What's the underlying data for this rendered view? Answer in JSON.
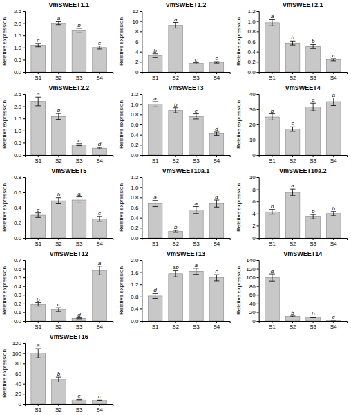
{
  "chart_data": [
    {
      "type": "bar",
      "title": "VmSWEET1.1",
      "ylabel": "Relative expression",
      "categories": [
        "S1",
        "S2",
        "S3",
        "S4"
      ],
      "values": [
        1.1,
        2.0,
        1.7,
        1.0
      ],
      "errors": [
        0.07,
        0.06,
        0.09,
        0.06
      ],
      "letters": [
        "c",
        "a",
        "b",
        "c"
      ],
      "ylim": [
        0,
        2.5
      ],
      "yticks": [
        {
          "value": 0,
          "label": "0.0"
        },
        0.5,
        {
          "value": 1,
          "label": "1.0"
        },
        1.5,
        {
          "value": 2,
          "label": "2.0"
        },
        2.5
      ],
      "color": "#c8c8c8",
      "grid": false
    },
    {
      "type": "bar",
      "title": "VmSWEET1.2",
      "ylabel": "Relative expression",
      "categories": [
        "S1",
        "S2",
        "S3",
        "S4"
      ],
      "values": [
        3.2,
        9.2,
        1.7,
        1.9
      ],
      "errors": [
        0.38,
        0.55,
        0.13,
        0.14
      ],
      "letters": [
        "b",
        "a",
        "c",
        "c"
      ],
      "ylim": [
        0,
        12
      ],
      "yticks": [
        0,
        2,
        4,
        6,
        8,
        10,
        12
      ],
      "color": "#c8c8c8",
      "grid": false
    },
    {
      "type": "bar",
      "title": "VmSWEET2.1",
      "ylabel": "Relative expression",
      "categories": [
        "S1",
        "S2",
        "S3",
        "S4"
      ],
      "values": [
        0.97,
        0.57,
        0.5,
        0.24
      ],
      "errors": [
        0.06,
        0.04,
        0.04,
        0.02
      ],
      "letters": [
        "a",
        "b",
        "b",
        "c"
      ],
      "ylim": [
        0,
        1.2
      ],
      "yticks": [
        {
          "value": 0,
          "label": "0.0"
        },
        0.2,
        0.4,
        0.6,
        0.8,
        {
          "value": 1,
          "label": "1.0"
        },
        1.2
      ],
      "color": "#c8c8c8",
      "grid": false
    },
    {
      "type": "bar",
      "title": "VmSWEET2.2",
      "ylabel": "Relative expression",
      "categories": [
        "S1",
        "S2",
        "S3",
        "S4"
      ],
      "values": [
        2.2,
        1.58,
        0.42,
        0.28
      ],
      "errors": [
        0.18,
        0.12,
        0.04,
        0.03
      ],
      "letters": [
        "a",
        "b",
        "c",
        "d"
      ],
      "ylim": [
        0,
        2.5
      ],
      "yticks": [
        {
          "value": 0,
          "label": "0.0"
        },
        0.5,
        {
          "value": 1,
          "label": "1.0"
        },
        1.5,
        {
          "value": 2,
          "label": "2.0"
        },
        2.5
      ],
      "color": "#c8c8c8",
      "grid": false
    },
    {
      "type": "bar",
      "title": "VmSWEET3",
      "ylabel": "Relative expression",
      "categories": [
        "S1",
        "S2",
        "S3",
        "S4"
      ],
      "values": [
        1.0,
        0.88,
        0.76,
        0.42
      ],
      "errors": [
        0.05,
        0.05,
        0.05,
        0.03
      ],
      "letters": [
        "a",
        "b",
        "c",
        "d"
      ],
      "ylim": [
        0,
        1.2
      ],
      "yticks": [
        {
          "value": 0,
          "label": "0.0"
        },
        0.2,
        0.4,
        0.6,
        0.8,
        {
          "value": 1,
          "label": "1.0"
        },
        1.2
      ],
      "color": "#c8c8c8",
      "grid": false
    },
    {
      "type": "bar",
      "title": "VmSWEET4",
      "ylabel": "Relative expression",
      "categories": [
        "S1",
        "S2",
        "S3",
        "S4"
      ],
      "values": [
        25.0,
        17.0,
        31.5,
        35.0
      ],
      "errors": [
        2.0,
        1.5,
        2.5,
        2.5
      ],
      "letters": [
        "b",
        "c",
        "a",
        "a"
      ],
      "ylim": [
        0,
        40
      ],
      "yticks": [
        0,
        10,
        20,
        30,
        40
      ],
      "color": "#c8c8c8",
      "grid": false
    },
    {
      "type": "bar",
      "title": "VmSWEET5",
      "ylabel": "Relative expression",
      "categories": [
        "S1",
        "S2",
        "S3",
        "S4"
      ],
      "values": [
        0.3,
        0.49,
        0.5,
        0.25
      ],
      "errors": [
        0.03,
        0.04,
        0.04,
        0.03
      ],
      "letters": [
        "c",
        "b",
        "a",
        "c"
      ],
      "ylim": [
        0,
        0.8
      ],
      "yticks": [
        {
          "value": 0,
          "label": "0.0"
        },
        0.2,
        0.4,
        0.6,
        0.8
      ],
      "color": "#c8c8c8",
      "grid": false
    },
    {
      "type": "bar",
      "title": "VmSWEET10a.1",
      "ylabel": "Relative expression",
      "categories": [
        "S1",
        "S2",
        "S3",
        "S4"
      ],
      "values": [
        0.68,
        0.13,
        0.55,
        0.68
      ],
      "errors": [
        0.06,
        0.02,
        0.07,
        0.07
      ],
      "letters": [
        "a",
        "b",
        "a",
        "a"
      ],
      "ylim": [
        0,
        1.2
      ],
      "yticks": [
        {
          "value": 0,
          "label": "0.0"
        },
        0.2,
        0.4,
        0.6,
        0.8,
        {
          "value": 1,
          "label": "1.0"
        },
        1.2
      ],
      "color": "#c8c8c8",
      "grid": false
    },
    {
      "type": "bar",
      "title": "VmSWEET10a.2",
      "ylabel": "Relative expression",
      "categories": [
        "S1",
        "S2",
        "S3",
        "S4"
      ],
      "values": [
        4.3,
        7.5,
        3.5,
        4.0
      ],
      "errors": [
        0.4,
        0.55,
        0.35,
        0.35
      ],
      "letters": [
        "b",
        "a",
        "b",
        "b"
      ],
      "ylim": [
        0,
        10
      ],
      "yticks": [
        0,
        2,
        4,
        6,
        8,
        10
      ],
      "color": "#c8c8c8",
      "grid": false
    },
    {
      "type": "bar",
      "title": "VmSWEET12",
      "ylabel": "Relative expression",
      "categories": [
        "S1",
        "S2",
        "S3",
        "S4"
      ],
      "values": [
        0.19,
        0.13,
        0.03,
        0.58
      ],
      "errors": [
        0.02,
        0.02,
        0.005,
        0.05
      ],
      "letters": [
        "b",
        "c",
        "d",
        "a"
      ],
      "ylim": [
        0,
        0.7
      ],
      "yticks": [
        {
          "value": 0,
          "label": "0.0"
        },
        0.1,
        0.2,
        0.3,
        0.4,
        0.5,
        0.6,
        0.7
      ],
      "color": "#c8c8c8",
      "grid": false
    },
    {
      "type": "bar",
      "title": "VmSWEET13",
      "ylabel": "Relative expression",
      "categories": [
        "S1",
        "S2",
        "S3",
        "S4"
      ],
      "values": [
        0.82,
        1.55,
        1.63,
        1.42
      ],
      "errors": [
        0.08,
        0.1,
        0.1,
        0.1
      ],
      "letters": [
        "d",
        "ab",
        "a",
        "c"
      ],
      "ylim": [
        0,
        2.0
      ],
      "yticks": [
        {
          "value": 0,
          "label": "0.0"
        },
        0.4,
        0.8,
        1.2,
        1.6,
        {
          "value": 2,
          "label": "2.0"
        }
      ],
      "color": "#c8c8c8",
      "grid": false
    },
    {
      "type": "bar",
      "title": "VmSWEET14",
      "ylabel": "Relative expression",
      "categories": [
        "S1",
        "S2",
        "S3",
        "S4"
      ],
      "values": [
        100.0,
        10.0,
        8.0,
        2.0
      ],
      "errors": [
        8.0,
        1.2,
        0.8,
        0.3
      ],
      "letters": [
        "a",
        "b",
        "b",
        "c"
      ],
      "ylim": [
        0,
        140
      ],
      "yticks": [
        0,
        20,
        40,
        60,
        80,
        100,
        120,
        140
      ],
      "color": "#c8c8c8",
      "grid": false
    },
    {
      "type": "bar",
      "title": "VmSWEET16",
      "ylabel": "Relative expression",
      "categories": [
        "S1",
        "S2",
        "S3",
        "S4"
      ],
      "values": [
        100.0,
        48.0,
        8.0,
        7.0
      ],
      "errors": [
        9.0,
        5.0,
        1.0,
        0.8
      ],
      "letters": [
        "a",
        "b",
        "c",
        "c"
      ],
      "ylim": [
        0,
        120
      ],
      "yticks": [
        0,
        20,
        40,
        60,
        80,
        100,
        120
      ],
      "color": "#c8c8c8",
      "grid": false
    }
  ]
}
